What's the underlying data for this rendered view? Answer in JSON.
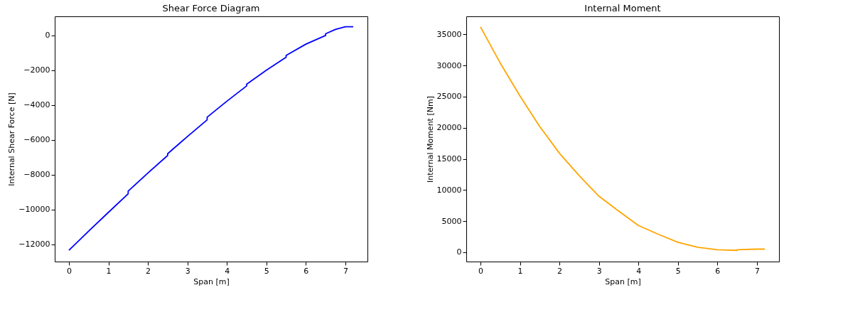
{
  "chart_data": [
    {
      "type": "line",
      "title": "Shear Force Diagram",
      "xlabel": "Span [m]",
      "ylabel": "Internal Shear Force [N]",
      "xlim": [
        -0.36,
        7.56
      ],
      "ylim": [
        -13000,
        1100
      ],
      "xticks": [
        0,
        1,
        2,
        3,
        4,
        5,
        6,
        7
      ],
      "yticks": [
        -12000,
        -10000,
        -8000,
        -6000,
        -4000,
        -2000,
        0
      ],
      "grid": false,
      "marker": "none",
      "line_style": "solid",
      "x": [
        0,
        0.5,
        1,
        1.5,
        1.5,
        2,
        2.5,
        2.5,
        3,
        3.5,
        3.5,
        4,
        4.5,
        4.5,
        5,
        5.5,
        5.5,
        6,
        6.5,
        6.5,
        6.75,
        7,
        7.2
      ],
      "series": [
        {
          "color": "#0000ff",
          "values": [
            -12350,
            -11250,
            -10170,
            -9100,
            -8950,
            -7910,
            -6900,
            -6800,
            -5810,
            -4850,
            -4700,
            -3780,
            -2900,
            -2800,
            -2000,
            -1250,
            -1150,
            -500,
            0,
            100,
            350,
            500,
            500
          ]
        }
      ]
    },
    {
      "type": "line",
      "title": "Internal Moment",
      "xlabel": "Span [m]",
      "ylabel": "Internal Moment [Nm]",
      "xlim": [
        -0.36,
        7.56
      ],
      "ylim": [
        -1500,
        37900
      ],
      "xticks": [
        0,
        1,
        2,
        3,
        4,
        5,
        6,
        7
      ],
      "yticks": [
        0,
        5000,
        10000,
        15000,
        20000,
        25000,
        30000,
        35000
      ],
      "grid": false,
      "marker": "none",
      "line_style": "solid",
      "x": [
        0,
        0.5,
        1,
        1.5,
        2,
        2.5,
        3,
        3.5,
        4,
        4.5,
        5,
        5.5,
        6,
        6.5,
        6.5,
        7,
        7.2
      ],
      "series": [
        {
          "color": "#ffa500",
          "values": [
            36200,
            30400,
            25100,
            20200,
            15900,
            12300,
            9000,
            6600,
            4300,
            2900,
            1600,
            800,
            400,
            300,
            400,
            500,
            500
          ]
        }
      ]
    }
  ]
}
